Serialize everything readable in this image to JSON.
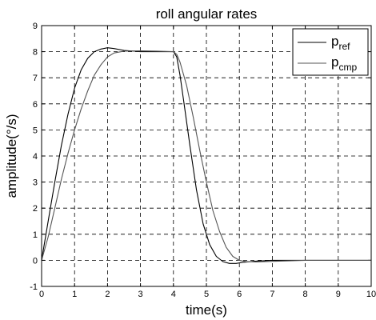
{
  "chart_data": {
    "type": "line",
    "title": "roll angular rates",
    "xlabel": "time(s)",
    "ylabel": "amplitude(°/s)",
    "xlim": [
      0,
      10
    ],
    "ylim": [
      -1,
      9
    ],
    "xticks": [
      0,
      1,
      2,
      3,
      4,
      5,
      6,
      7,
      8,
      9,
      10
    ],
    "yticks": [
      -1,
      0,
      1,
      2,
      3,
      4,
      5,
      6,
      7,
      8,
      9
    ],
    "grid": true,
    "legend_position": "top-right",
    "series": [
      {
        "name_base": "p",
        "name_sub": "ref",
        "color": "#000000",
        "x": [
          0,
          0.2,
          0.4,
          0.6,
          0.8,
          1.0,
          1.2,
          1.4,
          1.6,
          1.8,
          2.0,
          2.2,
          2.5,
          3.0,
          3.5,
          4.0,
          4.1,
          4.2,
          4.3,
          4.5,
          4.7,
          4.9,
          5.1,
          5.3,
          5.5,
          5.7,
          5.9,
          6.1,
          6.5,
          7.0,
          7.5,
          8.0,
          9.0,
          10.0
        ],
        "y": [
          0,
          1.5,
          3.0,
          4.4,
          5.6,
          6.6,
          7.3,
          7.75,
          8.0,
          8.1,
          8.15,
          8.12,
          8.05,
          8.0,
          8.0,
          8.0,
          7.8,
          7.1,
          6.2,
          4.4,
          2.7,
          1.4,
          0.6,
          0.15,
          -0.05,
          -0.12,
          -0.12,
          -0.08,
          -0.03,
          0.0,
          0.0,
          0.0,
          0.0,
          0.0
        ]
      },
      {
        "name_base": "p",
        "name_sub": "cmp",
        "color": "#555555",
        "x": [
          0,
          0.2,
          0.4,
          0.6,
          0.8,
          1.0,
          1.2,
          1.4,
          1.6,
          1.8,
          2.0,
          2.2,
          2.5,
          3.0,
          3.5,
          4.0,
          4.1,
          4.2,
          4.4,
          4.6,
          4.8,
          5.0,
          5.2,
          5.4,
          5.6,
          5.8,
          6.0,
          6.2,
          6.5,
          7.0,
          7.5,
          8.0,
          9.0,
          10.0
        ],
        "y": [
          0,
          0.9,
          2.0,
          3.1,
          4.1,
          5.0,
          5.8,
          6.5,
          7.1,
          7.5,
          7.8,
          7.95,
          8.02,
          8.03,
          8.02,
          8.0,
          7.9,
          7.6,
          6.7,
          5.5,
          4.2,
          3.0,
          1.9,
          1.1,
          0.5,
          0.15,
          0.0,
          -0.05,
          -0.06,
          -0.04,
          -0.02,
          0.0,
          0.0,
          0.0
        ]
      }
    ]
  }
}
